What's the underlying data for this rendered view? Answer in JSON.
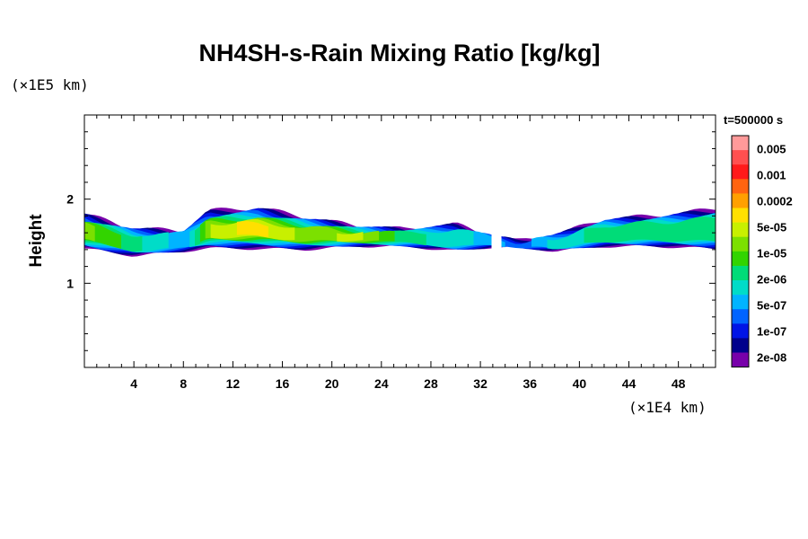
{
  "chart_data": {
    "type": "heatmap",
    "title": "NH4SH-s-Rain Mixing Ratio [kg/kg]",
    "ylabel": "Height",
    "y_scale_label": "(×1E5 km)",
    "x_scale_label": "(×1E4 km)",
    "time_label": "t=500000 s",
    "xlim": [
      0,
      51
    ],
    "ylim": [
      0,
      3
    ],
    "x_ticks": [
      4,
      8,
      12,
      16,
      20,
      24,
      28,
      32,
      36,
      40,
      44,
      48
    ],
    "y_ticks": [
      1,
      2
    ],
    "colorbar": {
      "labels": [
        "0.005",
        "0.001",
        "0.0002",
        "5e-05",
        "1e-05",
        "2e-06",
        "5e-07",
        "1e-07",
        "2e-08"
      ],
      "colors": [
        "#ff9a9a",
        "#ff4f4f",
        "#ff1a1a",
        "#ff6410",
        "#ffa000",
        "#ffe000",
        "#c8f000",
        "#7ce000",
        "#32d400",
        "#00dc78",
        "#00dcc8",
        "#00b4ff",
        "#0064ff",
        "#0014e6",
        "#00008c",
        "#7800aa"
      ]
    },
    "layer": {
      "base_height": [
        1.38,
        1.3,
        1.36,
        1.38,
        1.37,
        1.37,
        1.42,
        1.42,
        1.36,
        1.42,
        1.42,
        1.37,
        1.41,
        1.41,
        1.37
      ],
      "top_height": [
        1.82,
        1.65,
        1.62,
        1.86,
        1.9,
        1.78,
        1.68,
        1.64,
        1.7,
        1.56,
        1.5,
        1.57,
        1.76,
        1.8,
        1.88
      ],
      "x_at": [
        0,
        4,
        8,
        10,
        14,
        18,
        22,
        26,
        30,
        33,
        35,
        38,
        42,
        46,
        51
      ],
      "max_level_index": [
        4,
        6,
        8,
        3,
        2,
        4,
        3,
        6,
        7,
        8,
        9,
        7,
        6,
        6,
        6
      ]
    }
  }
}
